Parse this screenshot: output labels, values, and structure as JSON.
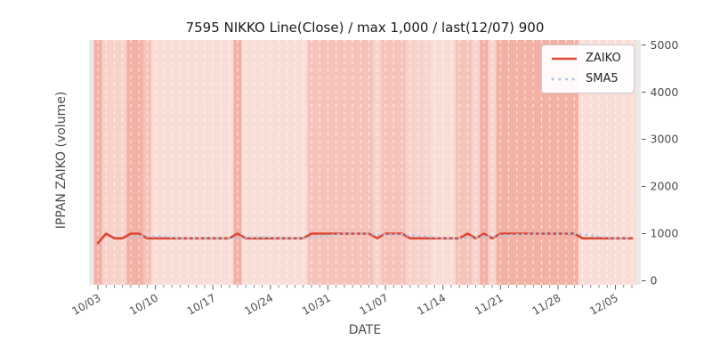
{
  "chart_data": {
    "type": "line",
    "title": "7595 NIKKO Line(Close) / max 1,000 / last(12/07) 900",
    "xlabel": "DATE",
    "ylabel": "IPPAN ZAIKO (volume)",
    "legend_position": "upper right",
    "grid": "vertical white dashed per day",
    "y_ticks": [
      0,
      1000,
      2000,
      3000,
      4000,
      5000
    ],
    "ylim": [
      -85,
      5105
    ],
    "x_major_tick_labels": [
      "10/03",
      "10/10",
      "10/17",
      "10/24",
      "10/31",
      "11/07",
      "11/14",
      "11/21",
      "11/28",
      "12/05"
    ],
    "x": [
      "10/03",
      "10/04",
      "10/05",
      "10/06",
      "10/07",
      "10/08",
      "10/09",
      "10/10",
      "10/11",
      "10/12",
      "10/13",
      "10/14",
      "10/15",
      "10/16",
      "10/17",
      "10/18",
      "10/19",
      "10/20",
      "10/21",
      "10/22",
      "10/23",
      "10/24",
      "10/25",
      "10/26",
      "10/27",
      "10/28",
      "10/29",
      "10/30",
      "10/31",
      "11/01",
      "11/02",
      "11/03",
      "11/04",
      "11/05",
      "11/06",
      "11/07",
      "11/08",
      "11/09",
      "11/10",
      "11/11",
      "11/12",
      "11/13",
      "11/14",
      "11/15",
      "11/16",
      "11/17",
      "11/18",
      "11/19",
      "11/20",
      "11/21",
      "11/22",
      "11/23",
      "11/24",
      "11/25",
      "11/26",
      "11/27",
      "11/28",
      "11/29",
      "11/30",
      "12/01",
      "12/02",
      "12/03",
      "12/04",
      "12/05",
      "12/06",
      "12/07"
    ],
    "series": [
      {
        "name": "ZAIKO",
        "style": "solid",
        "color": "#dd4632",
        "values": [
          800,
          1000,
          900,
          900,
          1000,
          1000,
          900,
          900,
          900,
          900,
          900,
          900,
          900,
          900,
          900,
          900,
          900,
          1000,
          900,
          900,
          900,
          900,
          900,
          900,
          900,
          900,
          1000,
          1000,
          1000,
          1000,
          1000,
          1000,
          1000,
          1000,
          900,
          1000,
          1000,
          1000,
          900,
          900,
          900,
          900,
          900,
          900,
          900,
          1000,
          900,
          1000,
          900,
          1000,
          1000,
          1000,
          1000,
          1000,
          1000,
          1000,
          1000,
          1000,
          1000,
          900,
          900,
          900,
          900,
          900,
          900,
          900
        ]
      },
      {
        "name": "SMA5",
        "style": "dotted",
        "color": "#aac7e4",
        "values": [
          null,
          null,
          null,
          null,
          920,
          960,
          940,
          940,
          940,
          920,
          900,
          900,
          900,
          900,
          900,
          900,
          900,
          920,
          920,
          920,
          920,
          920,
          900,
          900,
          900,
          900,
          920,
          940,
          960,
          980,
          1000,
          1000,
          1000,
          1000,
          980,
          980,
          980,
          980,
          960,
          960,
          940,
          920,
          900,
          900,
          900,
          920,
          920,
          940,
          940,
          960,
          960,
          980,
          980,
          1000,
          1000,
          1000,
          1000,
          1000,
          1000,
          980,
          960,
          940,
          920,
          900,
          900,
          900
        ]
      }
    ],
    "background_bands": {
      "level_colors": {
        "d": "#f3b1a6",
        "m": "#f6c3ba",
        "l": "#f8d3cc",
        "x": "#f9ded8"
      },
      "levels_by_day": [
        "d",
        "l",
        "l",
        "l",
        "d",
        "d",
        "m",
        "x",
        "x",
        "x",
        "x",
        "x",
        "x",
        "x",
        "x",
        "x",
        "x",
        "d",
        "x",
        "x",
        "x",
        "x",
        "x",
        "x",
        "x",
        "x",
        "m",
        "m",
        "m",
        "m",
        "m",
        "m",
        "m",
        "m",
        "l",
        "m",
        "m",
        "m",
        "l",
        "l",
        "l",
        "x",
        "x",
        "x",
        "m",
        "m",
        "l",
        "d",
        "l",
        "d",
        "d",
        "d",
        "d",
        "d",
        "d",
        "d",
        "d",
        "d",
        "d",
        "x",
        "x",
        "x",
        "x",
        "x",
        "x",
        "x"
      ]
    },
    "colors": {
      "plot_edge_bg": "#e9e9e9",
      "grid_line": "#ffffff",
      "tick_text": "#4d4d4d",
      "title_text": "#1a1a1a"
    }
  },
  "legend": {
    "items": [
      {
        "label": "ZAIKO"
      },
      {
        "label": "SMA5"
      }
    ]
  }
}
